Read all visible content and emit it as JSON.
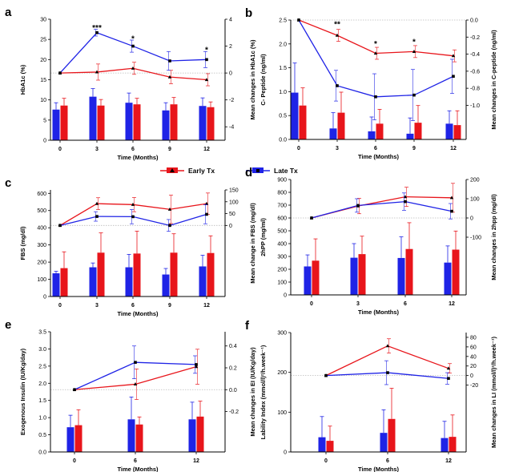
{
  "legend": {
    "early": {
      "label": "Early Tx",
      "color": "#e8151b"
    },
    "late": {
      "label": "Late Tx",
      "color": "#1f23e6"
    }
  },
  "chart_data": [
    {
      "panel": "a",
      "type": "bar+line",
      "xlabel": "Time (Months)",
      "ylabel": "HbA1c (%)",
      "y2label": "Mean changes in HbA1c (%)",
      "categories": [
        "0",
        "3",
        "6",
        "9",
        "12"
      ],
      "ylim": [
        0,
        30
      ],
      "yticks": [
        0,
        5,
        10,
        15,
        20,
        25,
        30
      ],
      "yticklabels": [
        "0",
        "5",
        "10",
        "15",
        "20",
        "25",
        "30"
      ],
      "y2lim": [
        -5,
        4
      ],
      "y2ticks": [
        -4,
        -2,
        0,
        2,
        4
      ],
      "y2ticklabels": [
        "-4",
        "-2",
        "0",
        "2",
        "4"
      ],
      "bars": [
        {
          "series": "late",
          "values": [
            7.6,
            10.8,
            9.3,
            7.4,
            8.5
          ],
          "errors": [
            1.7,
            2.0,
            2.4,
            1.9,
            2.0
          ]
        },
        {
          "series": "early",
          "values": [
            8.6,
            8.6,
            8.9,
            8.9,
            8.2
          ],
          "errors": [
            1.8,
            1.5,
            1.5,
            1.7,
            1.3
          ]
        }
      ],
      "lines": [
        {
          "series": "late",
          "values": [
            0,
            3.0,
            2.0,
            0.9,
            1.0
          ],
          "errors": [
            0,
            0.25,
            0.45,
            0.7,
            0.6
          ]
        },
        {
          "series": "early",
          "values": [
            0,
            0.07,
            0.35,
            -0.3,
            -0.5
          ],
          "errors": [
            0,
            0.6,
            0.45,
            0.5,
            0.45
          ]
        }
      ],
      "annotations": [
        {
          "x": "3",
          "y2": 3.35,
          "text": "***"
        },
        {
          "x": "6",
          "y2": 2.55,
          "text": "*"
        },
        {
          "x": "12",
          "y2": 1.7,
          "text": "*"
        }
      ]
    },
    {
      "panel": "b",
      "type": "bar+line",
      "xlabel": "Time (Months)",
      "ylabel": "C- Peptide (ng/ml)",
      "y2label": "Mean changes in C-peptide (ng/ml)",
      "categories": [
        "0",
        "3",
        "6",
        "9",
        "12"
      ],
      "ylim": [
        0,
        2.5
      ],
      "yticks": [
        0,
        0.5,
        1.0,
        1.5,
        2.0,
        2.5
      ],
      "yticklabels": [
        "0.0",
        "0.5",
        "1.0",
        "1.5",
        "2.0",
        "2.5"
      ],
      "y2lim": [
        -1.4,
        0
      ],
      "y2ticks": [
        0,
        -0.2,
        -0.4,
        -0.6,
        -0.8,
        -1.0
      ],
      "y2ticklabels": [
        "0.0",
        "-0.2",
        "-0.4",
        "-0.6",
        "-0.8",
        "-1.0"
      ],
      "bars": [
        {
          "series": "late",
          "values": [
            0.98,
            0.23,
            0.17,
            0.12,
            0.33
          ],
          "errors": [
            0.62,
            0.33,
            0.3,
            0.33,
            0.27
          ]
        },
        {
          "series": "early",
          "values": [
            0.71,
            0.56,
            0.33,
            0.35,
            0.3
          ],
          "errors": [
            0.37,
            0.43,
            0.3,
            0.36,
            0.3
          ]
        }
      ],
      "lines": [
        {
          "series": "late",
          "values": [
            0,
            -0.77,
            -0.9,
            -0.88,
            -0.66
          ],
          "errors": [
            0,
            0.18,
            0.27,
            0.3,
            0.2
          ]
        },
        {
          "series": "early",
          "values": [
            0,
            -0.18,
            -0.39,
            -0.37,
            -0.42
          ],
          "errors": [
            0,
            0.07,
            0.07,
            0.07,
            0.07
          ]
        }
      ],
      "annotations": [
        {
          "x": "3",
          "y2": -0.05,
          "text": "**"
        },
        {
          "x": "6",
          "y2": -0.28,
          "text": "*"
        },
        {
          "x": "9",
          "y2": -0.26,
          "text": "*"
        }
      ]
    },
    {
      "panel": "c",
      "type": "bar+line",
      "xlabel": "Time (Months)",
      "ylabel": "FBS (mg/dl)",
      "y2label": "Mean change in FBS (mg/dl)",
      "categories": [
        "0",
        "3",
        "6",
        "9",
        "12"
      ],
      "ylim": [
        0,
        620
      ],
      "yticks": [
        0,
        100,
        200,
        300,
        400,
        500,
        600
      ],
      "yticklabels": [
        "0",
        "100",
        "200",
        "300",
        "400",
        "500",
        "600"
      ],
      "y2lim": [
        -300,
        150
      ],
      "y2ticks": [
        0,
        50,
        100,
        150
      ],
      "y2ticklabels": [
        "0",
        "50",
        "100",
        "150"
      ],
      "bars": [
        {
          "series": "late",
          "values": [
            135,
            170,
            170,
            128,
            175
          ],
          "errors": [
            12,
            25,
            75,
            35,
            65
          ]
        },
        {
          "series": "early",
          "values": [
            165,
            255,
            250,
            255,
            253
          ],
          "errors": [
            95,
            115,
            130,
            110,
            100
          ]
        }
      ],
      "lines": [
        {
          "series": "late",
          "values": [
            0,
            38,
            37,
            0,
            47
          ],
          "errors": [
            0,
            20,
            30,
            25,
            40
          ]
        },
        {
          "series": "early",
          "values": [
            0,
            92,
            88,
            68,
            92
          ],
          "errors": [
            0,
            25,
            30,
            60,
            45
          ]
        }
      ]
    },
    {
      "panel": "d",
      "type": "bar+line",
      "xlabel": "Time (Months)",
      "ylabel": "2hPP (mg/ml)",
      "y2label": "Mean changes in 2hpp (mg/dl)",
      "categories": [
        "0",
        "3",
        "6",
        "12"
      ],
      "ylim": [
        0,
        900
      ],
      "yticks": [
        0,
        100,
        200,
        300,
        400,
        500,
        600,
        700,
        800,
        900
      ],
      "yticklabels": [
        "0",
        "100",
        "200",
        "300",
        "400",
        "500",
        "600",
        "700",
        "800",
        "900"
      ],
      "y2lim": [
        -400,
        200
      ],
      "y2ticks": [
        -100,
        0,
        100,
        200
      ],
      "y2ticklabels": [
        "-100",
        "0",
        "100",
        "200"
      ],
      "bars": [
        {
          "series": "late",
          "values": [
            222,
            290,
            288,
            252
          ],
          "errors": [
            90,
            110,
            165,
            130
          ]
        },
        {
          "series": "early",
          "values": [
            267,
            318,
            358,
            353
          ],
          "errors": [
            170,
            140,
            205,
            145
          ]
        }
      ],
      "lines": [
        {
          "series": "late",
          "values": [
            0,
            65,
            85,
            35
          ],
          "errors": [
            0,
            35,
            45,
            40
          ]
        },
        {
          "series": "early",
          "values": [
            0,
            62,
            110,
            105
          ],
          "errors": [
            0,
            40,
            50,
            75
          ]
        }
      ]
    },
    {
      "panel": "e",
      "type": "bar+line",
      "xlabel": "Time (Months)",
      "ylabel": "Exogenous Insulin (IU/Kg/day)",
      "y2label": "Mean changes in EI (IU/Kg/day)",
      "categories": [
        "0",
        "6",
        "12"
      ],
      "ylim": [
        0,
        3.5
      ],
      "yticks": [
        0,
        0.5,
        1.0,
        1.5,
        2.0,
        2.5,
        3.0,
        3.5
      ],
      "yticklabels": [
        "0.0",
        "0.5",
        "1.0",
        "1.5",
        "2.0",
        "2.5",
        "3.0",
        "3.5"
      ],
      "y2lim": [
        -0.57,
        0.53
      ],
      "y2ticks": [
        -0.2,
        0,
        0.2,
        0.4
      ],
      "y2ticklabels": [
        "-0.2",
        "0.0",
        "0.2",
        "0.4"
      ],
      "bars": [
        {
          "series": "late",
          "values": [
            0.72,
            0.95,
            0.95
          ],
          "errors": [
            0.35,
            0.65,
            0.5
          ]
        },
        {
          "series": "early",
          "values": [
            0.78,
            0.8,
            1.03
          ],
          "errors": [
            0.45,
            0.22,
            0.45
          ]
        }
      ],
      "lines": [
        {
          "series": "late",
          "values": [
            0,
            0.25,
            0.23
          ],
          "errors": [
            0,
            0.15,
            0.08
          ]
        },
        {
          "series": "early",
          "values": [
            0,
            0.05,
            0.21
          ],
          "errors": [
            0,
            0.14,
            0.16
          ]
        }
      ]
    },
    {
      "panel": "f",
      "type": "bar+line",
      "xlabel": "Time (Months)",
      "ylabel": "Lability Index (mmol/l)²/h.week⁻¹)",
      "y2label": "Mean changes in LI (mmol/l)²/h.week⁻¹)",
      "categories": [
        "0",
        "6",
        "12"
      ],
      "ylim": [
        0,
        300
      ],
      "yticks": [
        0,
        100,
        200,
        300
      ],
      "yticklabels": [
        "0",
        "100",
        "200",
        "300"
      ],
      "y2lim": [
        -160,
        90
      ],
      "y2ticks": [
        -20,
        0,
        20,
        40,
        60,
        80
      ],
      "y2ticklabels": [
        "-20",
        "0",
        "20",
        "40",
        "60",
        "80"
      ],
      "bars": [
        {
          "series": "late",
          "values": [
            37,
            48,
            35
          ],
          "errors": [
            52,
            58,
            42
          ]
        },
        {
          "series": "early",
          "values": [
            28,
            83,
            38
          ],
          "errors": [
            37,
            77,
            55
          ]
        }
      ],
      "lines": [
        {
          "series": "late",
          "values": [
            0,
            6,
            -6
          ],
          "errors": [
            0,
            25,
            12
          ]
        },
        {
          "series": "early",
          "values": [
            0,
            62,
            15
          ],
          "errors": [
            0,
            15,
            10
          ]
        }
      ]
    }
  ]
}
